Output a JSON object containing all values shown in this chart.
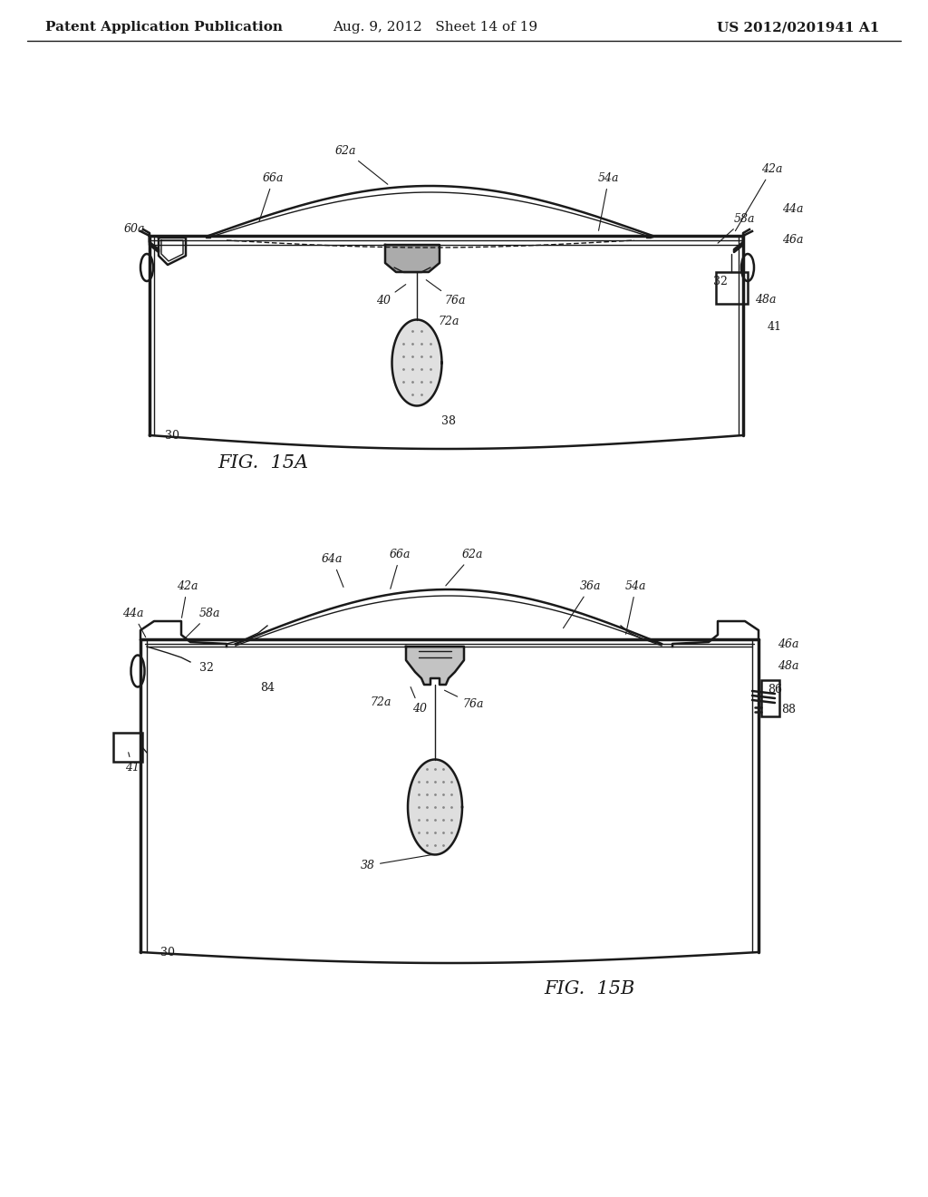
{
  "background_color": "#ffffff",
  "header_left": "Patent Application Publication",
  "header_center": "Aug. 9, 2012   Sheet 14 of 19",
  "header_right": "US 2012/0201941 A1",
  "fig_label_A": "FIG.  15A",
  "fig_label_B": "FIG.  15B",
  "line_color": "#1a1a1a",
  "annotation_color": "#1a1a1a",
  "font_size_header": 11,
  "font_size_label": 12,
  "font_size_fig": 14,
  "font_size_annot": 10
}
